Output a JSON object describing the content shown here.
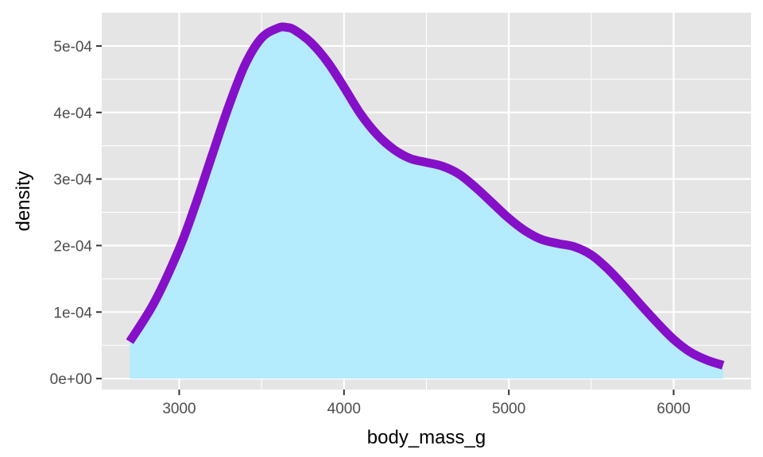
{
  "chart_data": {
    "type": "area",
    "xlabel": "body_mass_g",
    "ylabel": "density",
    "xlim": [
      2530,
      6470
    ],
    "ylim": [
      -1.65e-05,
      0.00055
    ],
    "x_ticks": [
      {
        "value": 3000,
        "label": "3000"
      },
      {
        "value": 4000,
        "label": "4000"
      },
      {
        "value": 5000,
        "label": "5000"
      },
      {
        "value": 6000,
        "label": "6000"
      }
    ],
    "y_ticks": [
      {
        "value": 0,
        "label": "0e+00"
      },
      {
        "value": 0.0001,
        "label": "1e-04"
      },
      {
        "value": 0.0002,
        "label": "2e-04"
      },
      {
        "value": 0.0003,
        "label": "3e-04"
      },
      {
        "value": 0.0004,
        "label": "4e-04"
      },
      {
        "value": 0.0005,
        "label": "5e-04"
      }
    ],
    "grid": true,
    "colors": {
      "panel": "#e5e5e5",
      "grid": "#ffffff",
      "fill": "#b4ecfd",
      "line": "#8510c8"
    },
    "series": [
      {
        "x": [
          2700,
          2850,
          3000,
          3100,
          3200,
          3300,
          3400,
          3500,
          3600,
          3650,
          3700,
          3800,
          3900,
          4000,
          4100,
          4200,
          4300,
          4400,
          4500,
          4600,
          4700,
          4800,
          4900,
          5000,
          5100,
          5200,
          5300,
          5400,
          5500,
          5600,
          5700,
          5800,
          5900,
          6000,
          6100,
          6200,
          6300
        ],
        "y": [
          5.55e-05,
          0.000115,
          0.000195,
          0.000262,
          0.000336,
          0.000409,
          0.000472,
          0.000512,
          0.000527,
          0.000528,
          0.000524,
          0.000505,
          0.000476,
          0.000438,
          0.000398,
          0.000367,
          0.000345,
          0.000331,
          0.000325,
          0.000319,
          0.000307,
          0.000287,
          0.000264,
          0.000241,
          0.000222,
          0.000209,
          0.000203,
          0.000198,
          0.000186,
          0.000165,
          0.000139,
          0.000111,
          8.4e-05,
          5.9e-05,
          4e-05,
          2.8e-05,
          2e-05
        ]
      }
    ]
  }
}
